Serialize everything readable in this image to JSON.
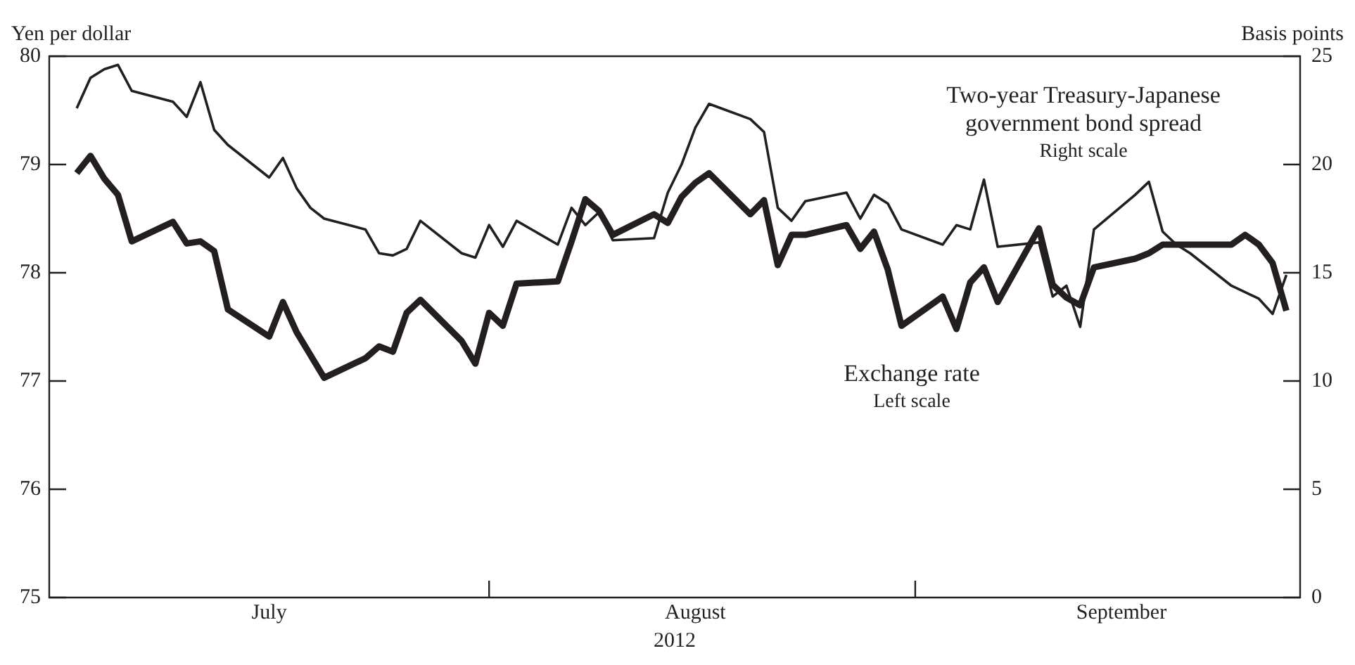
{
  "chart_data": {
    "type": "line",
    "ylabel": "Yen per dollar",
    "y2label": "Basis points",
    "xlabel": "2012",
    "x": [
      "2012-07-02",
      "2012-07-03",
      "2012-07-04",
      "2012-07-05",
      "2012-07-06",
      "2012-07-09",
      "2012-07-10",
      "2012-07-11",
      "2012-07-12",
      "2012-07-13",
      "2012-07-16",
      "2012-07-17",
      "2012-07-18",
      "2012-07-19",
      "2012-07-20",
      "2012-07-23",
      "2012-07-24",
      "2012-07-25",
      "2012-07-26",
      "2012-07-27",
      "2012-07-30",
      "2012-07-31",
      "2012-08-01",
      "2012-08-02",
      "2012-08-03",
      "2012-08-06",
      "2012-08-07",
      "2012-08-08",
      "2012-08-09",
      "2012-08-10",
      "2012-08-13",
      "2012-08-14",
      "2012-08-15",
      "2012-08-16",
      "2012-08-17",
      "2012-08-20",
      "2012-08-21",
      "2012-08-22",
      "2012-08-23",
      "2012-08-24",
      "2012-08-27",
      "2012-08-28",
      "2012-08-29",
      "2012-08-30",
      "2012-08-31",
      "2012-09-03",
      "2012-09-04",
      "2012-09-05",
      "2012-09-06",
      "2012-09-07",
      "2012-09-10",
      "2012-09-11",
      "2012-09-12",
      "2012-09-13",
      "2012-09-14",
      "2012-09-17",
      "2012-09-18",
      "2012-09-19",
      "2012-09-20",
      "2012-09-21",
      "2012-09-24",
      "2012-09-25",
      "2012-09-26",
      "2012-09-27",
      "2012-09-28"
    ],
    "series": [
      {
        "name": "Exchange rate",
        "color": "#231f20",
        "axis": "y",
        "values": [
          78.92,
          79.08,
          78.87,
          78.72,
          78.29,
          78.47,
          78.27,
          78.29,
          78.2,
          77.66,
          77.41,
          77.73,
          77.45,
          77.24,
          77.03,
          77.21,
          77.32,
          77.27,
          77.63,
          77.75,
          77.37,
          77.16,
          77.63,
          77.51,
          77.9,
          77.92,
          78.29,
          78.68,
          78.57,
          78.35,
          78.54,
          78.46,
          78.7,
          78.83,
          78.92,
          78.54,
          78.67,
          78.07,
          78.35,
          78.35,
          78.44,
          78.22,
          78.38,
          78.03,
          77.51,
          77.78,
          77.48,
          77.91,
          78.05,
          77.73,
          78.41,
          77.89,
          77.77,
          77.7,
          78.05,
          78.13,
          78.18,
          78.26,
          78.26,
          78.26,
          78.26,
          78.35,
          78.26,
          78.09,
          77.65
        ]
      },
      {
        "name": "Two-year Treasury-Japanese government bond spread",
        "color": "#231f20",
        "axis": "y2",
        "values": [
          22.6,
          24.0,
          24.4,
          24.6,
          23.4,
          22.9,
          22.2,
          23.8,
          21.6,
          20.9,
          19.4,
          20.3,
          18.9,
          18.0,
          17.5,
          17.0,
          15.9,
          15.8,
          16.1,
          17.4,
          15.9,
          15.7,
          17.2,
          16.2,
          17.4,
          16.3,
          18.0,
          17.2,
          17.8,
          16.5,
          16.6,
          18.7,
          20.0,
          21.7,
          22.8,
          22.1,
          21.5,
          18.0,
          17.4,
          18.3,
          18.7,
          17.5,
          18.6,
          18.2,
          17.0,
          16.3,
          17.2,
          17.0,
          19.3,
          16.2,
          16.4,
          13.9,
          14.4,
          12.5,
          17.0,
          18.6,
          19.2,
          16.9,
          16.3,
          15.9,
          14.4,
          14.1,
          13.8,
          13.1,
          14.9
        ]
      }
    ],
    "annotations": [
      "Left scale",
      "Right scale"
    ],
    "xlim": [
      "2012-06-30",
      "2012-09-29"
    ],
    "xticks": [
      {
        "value": "2012-07-16",
        "label": "July"
      },
      {
        "value": "2012-08-01",
        "label": null
      },
      {
        "value": "2012-08-16",
        "label": "August"
      },
      {
        "value": "2012-09-01",
        "label": null
      },
      {
        "value": "2012-09-16",
        "label": "September"
      }
    ],
    "ylim": [
      75,
      80
    ],
    "yticks": [
      75,
      76,
      77,
      78,
      79,
      80
    ],
    "y2lim": [
      0,
      25
    ],
    "y2ticks": [
      0,
      5,
      10,
      15,
      20,
      25
    ],
    "grid": false,
    "legend": false,
    "marker": "none",
    "line_style": "solid"
  }
}
